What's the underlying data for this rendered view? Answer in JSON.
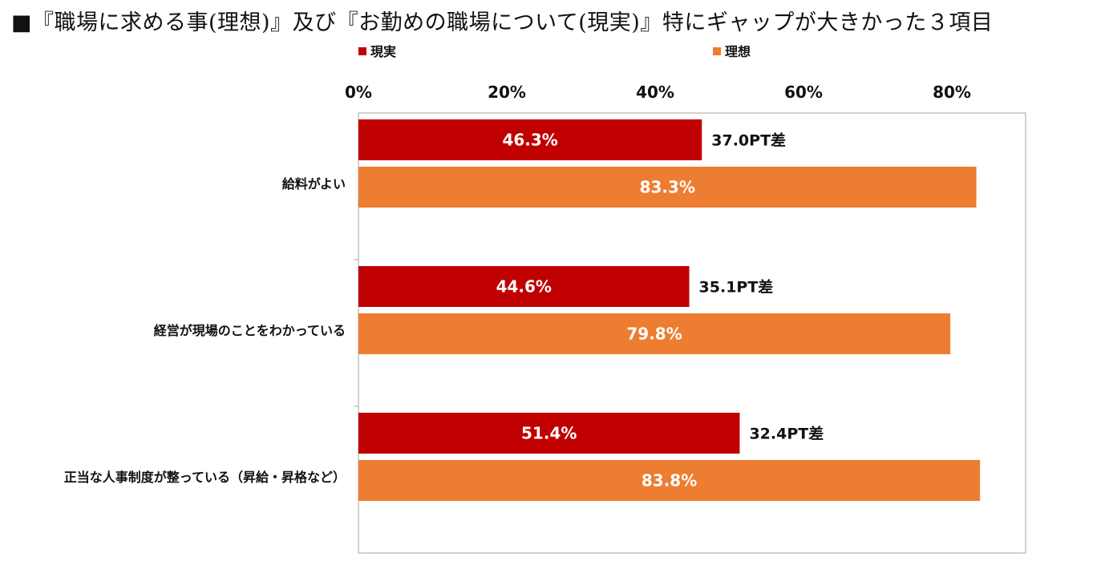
{
  "page": {
    "title": "■『職場に求める事(理想)』及び『お勤めの職場について(現実)』特にギャップが大きかった３項目"
  },
  "colors": {
    "reality": "#c00000",
    "ideal": "#ed7d31",
    "axis": "#a6a6a6",
    "text": "#111111",
    "bar_label": "#ffffff"
  },
  "chart_data": {
    "type": "bar",
    "orientation": "horizontal",
    "title": "",
    "xlim": [
      0,
      90
    ],
    "x_ticks": [
      0,
      20,
      40,
      60,
      80
    ],
    "x_tick_labels": [
      "0%",
      "20%",
      "40%",
      "60%",
      "80%"
    ],
    "grid": false,
    "legend_position": "top",
    "legend": [
      {
        "name": "現実",
        "color": "#c00000"
      },
      {
        "name": "理想",
        "color": "#ed7d31"
      }
    ],
    "categories": [
      "給料がよい",
      "経営が現場のことをわかっている",
      "正当な人事制度が整っている（昇給・昇格など）"
    ],
    "series": [
      {
        "name": "現実",
        "values": [
          46.3,
          44.6,
          51.4
        ],
        "labels": [
          "46.3%",
          "44.6%",
          "51.4%"
        ]
      },
      {
        "name": "理想",
        "values": [
          83.3,
          79.8,
          83.8
        ],
        "labels": [
          "83.3%",
          "79.8%",
          "83.8%"
        ]
      }
    ],
    "annotations": [
      "37.0PT差",
      "35.1PT差",
      "32.4PT差"
    ]
  }
}
